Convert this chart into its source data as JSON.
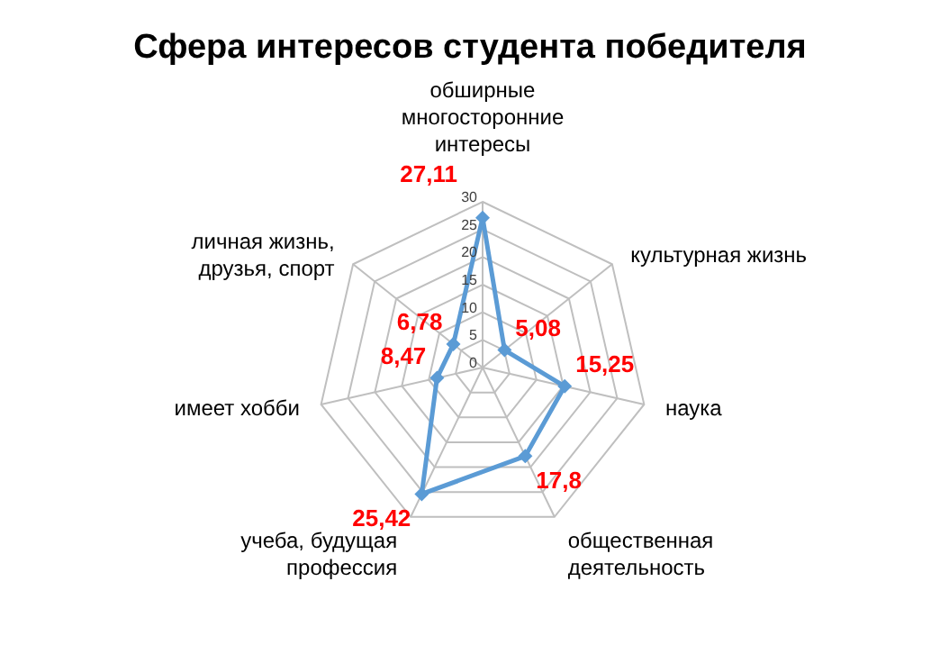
{
  "chart_data": {
    "type": "radar",
    "title": "Сфера интересов студента победителя",
    "categories": [
      "обширные многосторонние интересы",
      "культурная жизнь",
      "наука",
      "общественная деятельность",
      "учеба, будущая профессия",
      "имеет хобби",
      "личная жизнь, друзья, спорт"
    ],
    "series": [
      {
        "color": "#5b9bd5",
        "values": [
          27.11,
          5.08,
          15.25,
          17.8,
          25.42,
          8.47,
          6.78
        ],
        "value_labels": [
          "27,11",
          "5,08",
          "15,25",
          "17,8",
          "25,42",
          "8,47",
          "6,78"
        ]
      }
    ],
    "ylim": [
      0,
      30
    ],
    "yticks": [
      0,
      5,
      10,
      15,
      20,
      25,
      30
    ],
    "grid": true,
    "legend": false,
    "marker": "diamond"
  }
}
